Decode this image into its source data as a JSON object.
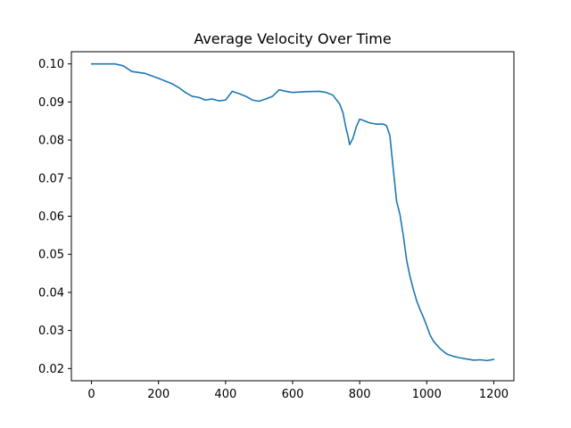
{
  "chart_data": {
    "type": "line",
    "title": "Average Velocity Over Time",
    "xlabel": "",
    "ylabel": "",
    "xlim": [
      -60,
      1260
    ],
    "ylim": [
      0.0168,
      0.1032
    ],
    "x_ticks": [
      0,
      200,
      400,
      600,
      800,
      1000,
      1200
    ],
    "x_tick_labels": [
      "0",
      "200",
      "400",
      "600",
      "800",
      "1000",
      "1200"
    ],
    "y_ticks": [
      0.02,
      0.03,
      0.04,
      0.05,
      0.06,
      0.07,
      0.08,
      0.09,
      0.1
    ],
    "y_tick_labels": [
      "0.02",
      "0.03",
      "0.04",
      "0.05",
      "0.06",
      "0.07",
      "0.08",
      "0.09",
      "0.10"
    ],
    "grid": false,
    "legend": "none",
    "series": [
      {
        "color": "#1f77b4",
        "x": [
          0,
          40,
          70,
          95,
          120,
          160,
          200,
          220,
          240,
          260,
          280,
          300,
          320,
          340,
          360,
          380,
          400,
          420,
          440,
          460,
          480,
          500,
          520,
          540,
          560,
          580,
          600,
          640,
          680,
          700,
          720,
          740,
          750,
          760,
          765,
          770,
          780,
          790,
          800,
          810,
          830,
          850,
          870,
          880,
          890,
          900,
          910,
          920,
          930,
          940,
          950,
          960,
          970,
          980,
          990,
          1000,
          1010,
          1020,
          1030,
          1040,
          1050,
          1060,
          1080,
          1100,
          1120,
          1140,
          1160,
          1180,
          1200
        ],
        "y": [
          0.1,
          0.1,
          0.1,
          0.0995,
          0.098,
          0.0975,
          0.0962,
          0.0955,
          0.0948,
          0.0938,
          0.0925,
          0.0915,
          0.0912,
          0.0905,
          0.0908,
          0.0903,
          0.0905,
          0.0928,
          0.0922,
          0.0915,
          0.0905,
          0.0902,
          0.0908,
          0.0915,
          0.0932,
          0.0928,
          0.0925,
          0.0927,
          0.0928,
          0.0925,
          0.0918,
          0.0895,
          0.0872,
          0.0828,
          0.0812,
          0.0788,
          0.0805,
          0.0835,
          0.0855,
          0.0852,
          0.0845,
          0.0842,
          0.0842,
          0.0838,
          0.0812,
          0.0725,
          0.064,
          0.0605,
          0.055,
          0.0485,
          0.0442,
          0.0408,
          0.0378,
          0.0355,
          0.0335,
          0.0312,
          0.0288,
          0.0272,
          0.0262,
          0.0252,
          0.0245,
          0.0238,
          0.0232,
          0.0228,
          0.0225,
          0.0222,
          0.0223,
          0.0221,
          0.0224
        ]
      }
    ]
  }
}
